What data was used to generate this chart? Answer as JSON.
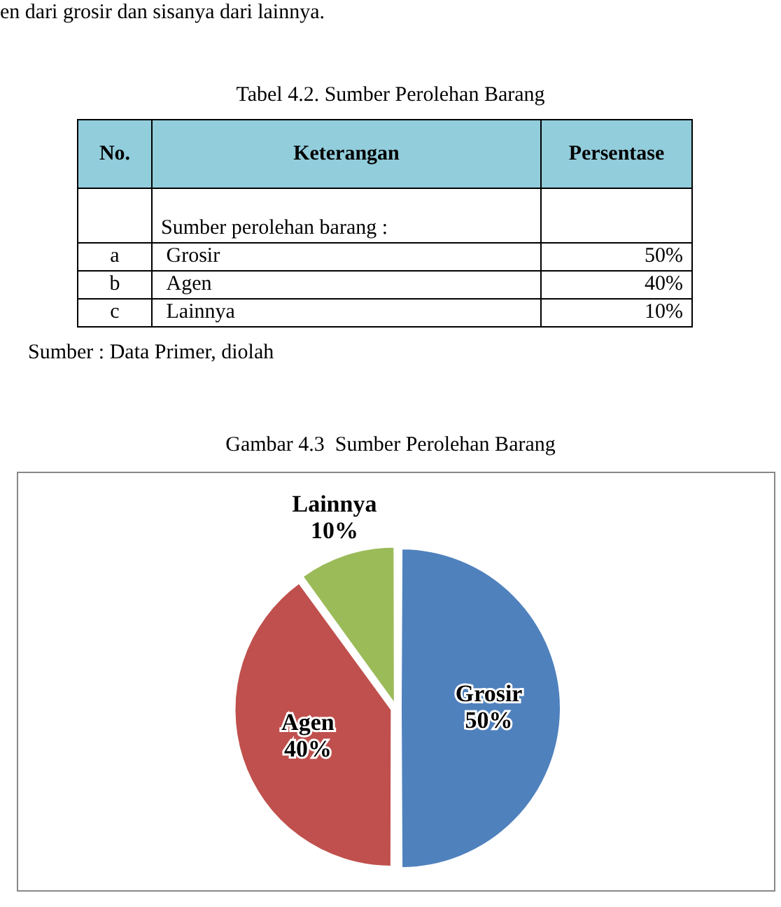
{
  "chart_data": {
    "type": "pie",
    "title": "Gambar 4.3  Sumber Perolehan Barang",
    "categories": [
      "Grosir",
      "Agen",
      "Lainnya"
    ],
    "values": [
      50,
      40,
      10
    ],
    "value_labels": [
      "50%",
      "40%",
      "10%"
    ],
    "colors": [
      "#4f81bd",
      "#c0504d",
      "#9bbb59"
    ],
    "legend": false,
    "annotations": [
      "en dari grosir dan sisanya dari lainnya.",
      "Tabel 4.2. Sumber Perolehan Barang",
      "No.",
      "Keterangan",
      "Persentase",
      "Sumber perolehan barang :",
      "a",
      "b",
      "c",
      "Sumber : Data Primer, diolah"
    ]
  }
}
